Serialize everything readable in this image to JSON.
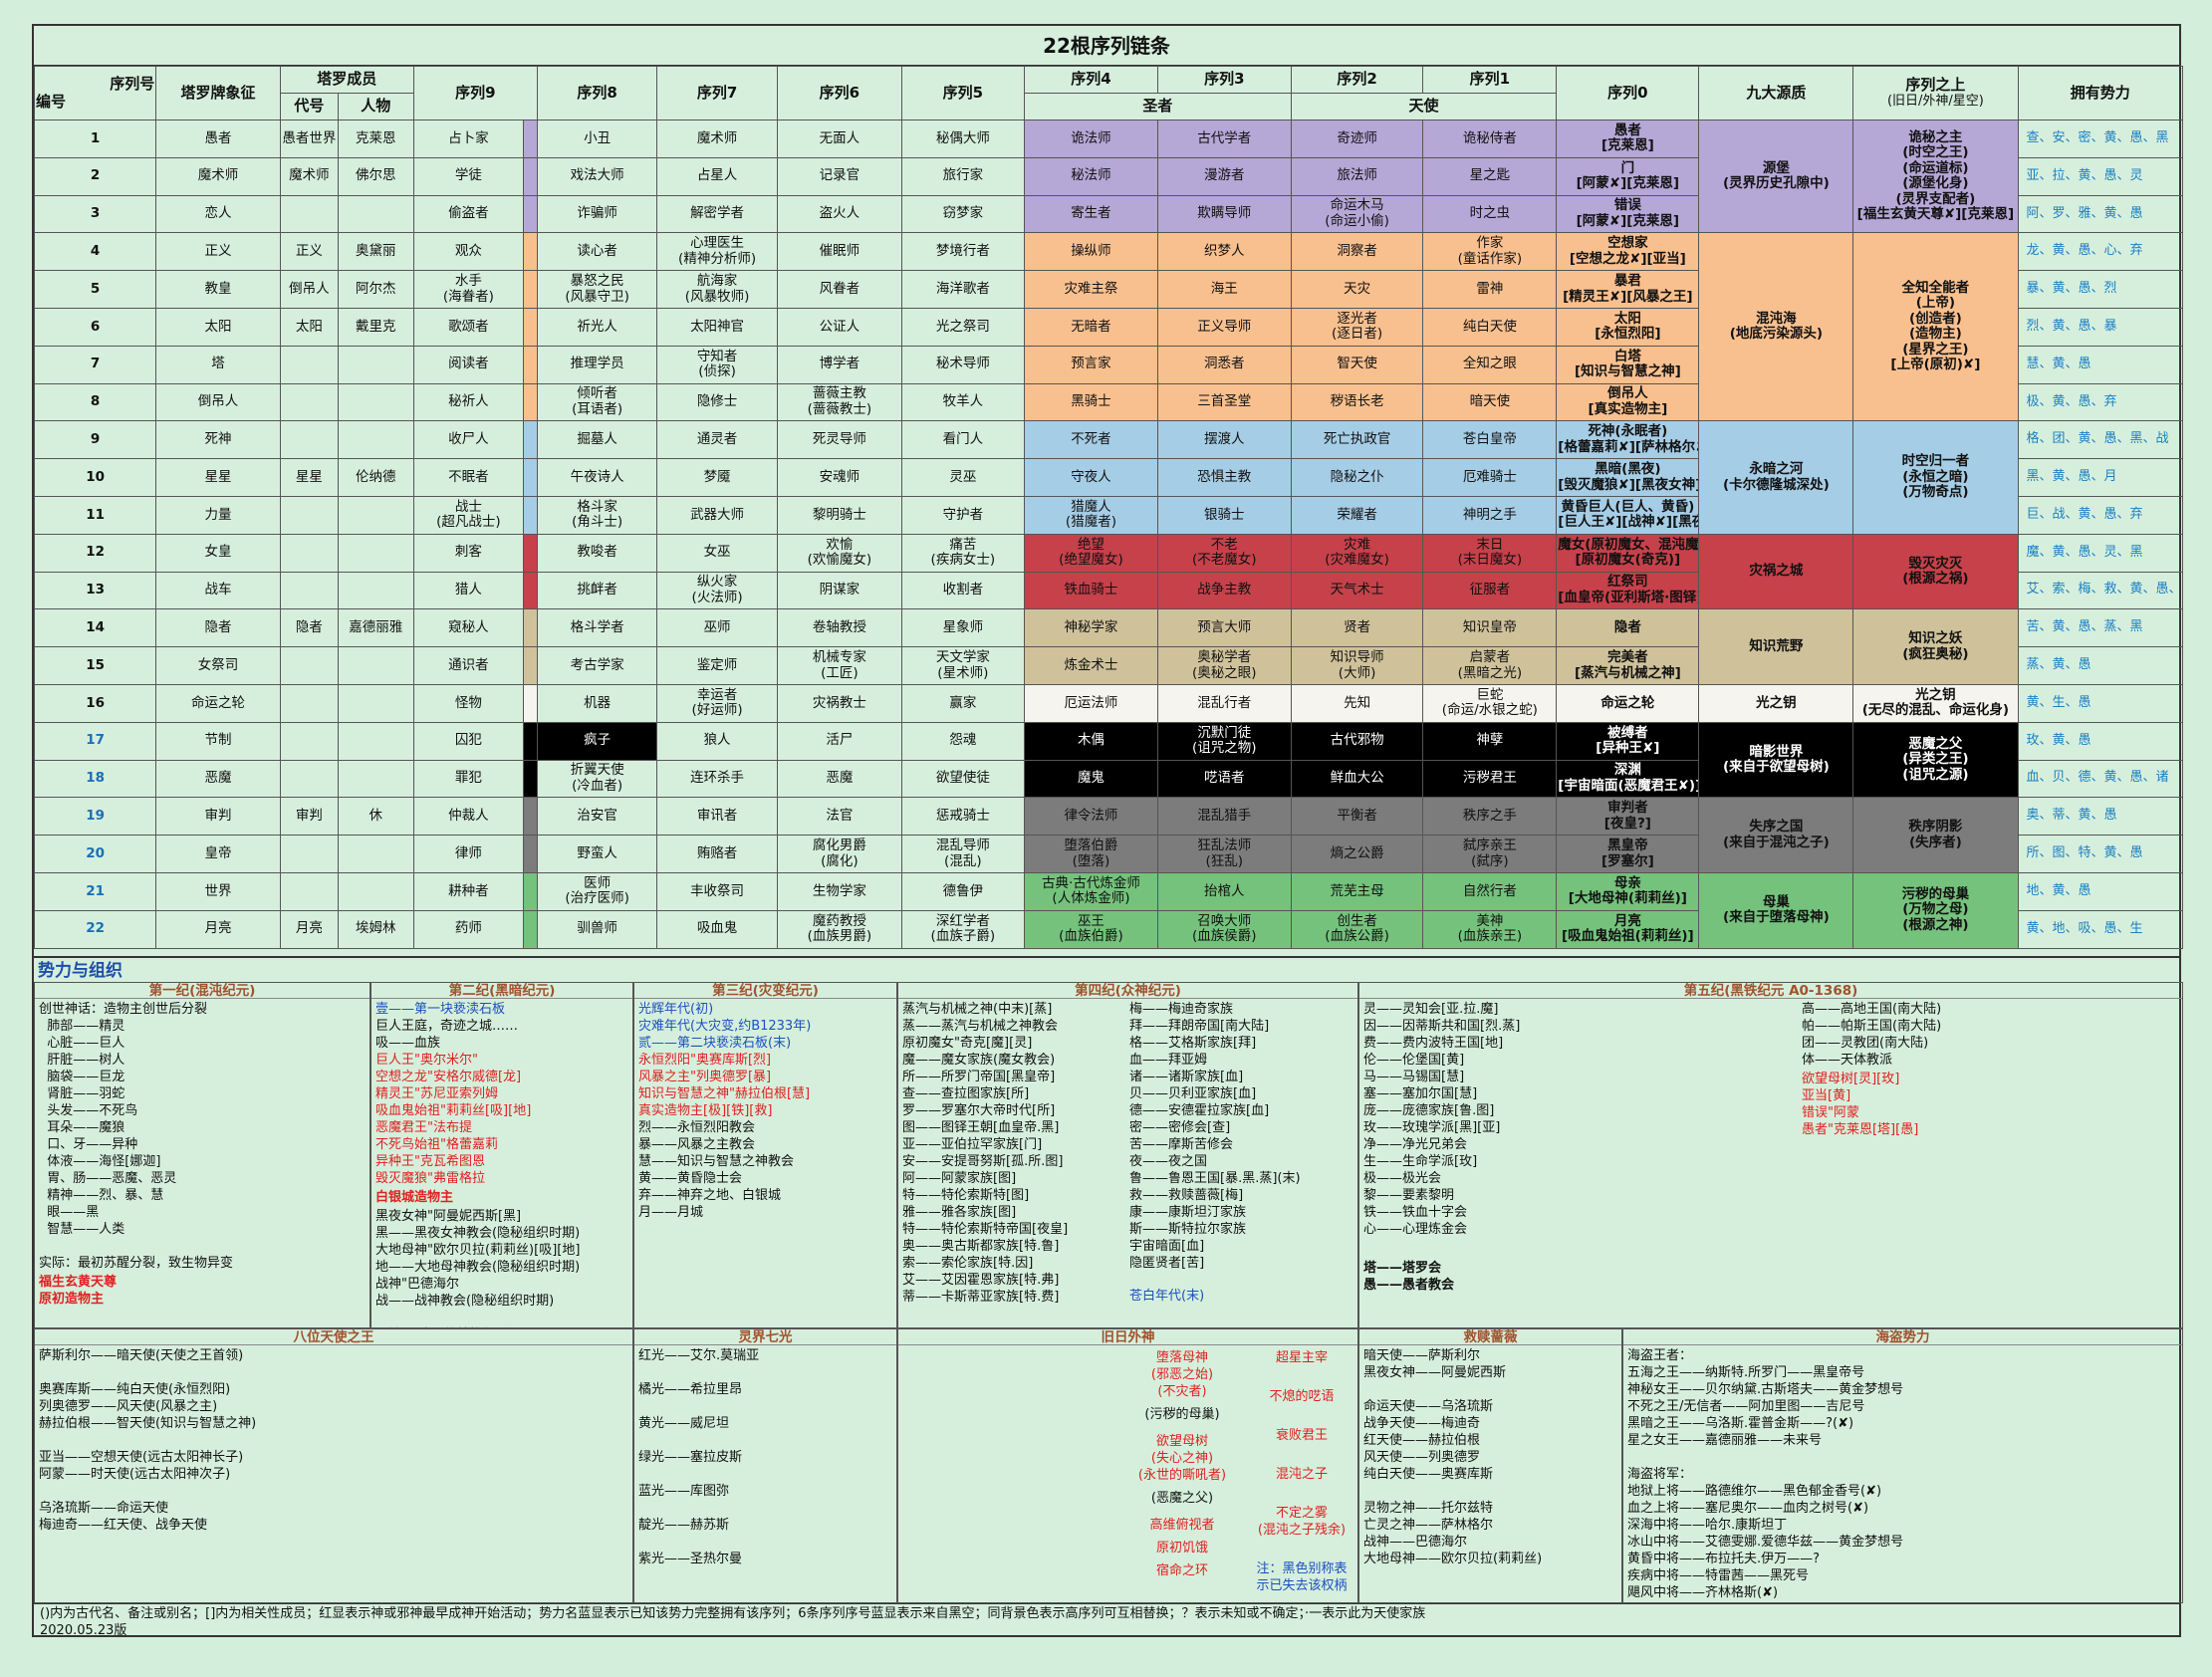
{
  "title": "22根序列链条",
  "header": {
    "seq_no": "序列号",
    "num": "编号",
    "tarot": "塔罗牌象征",
    "members": "塔罗成员",
    "code": "代号",
    "person": "人物",
    "seq9": "序列9",
    "seq8": "序列8",
    "seq7": "序列7",
    "seq6": "序列6",
    "seq5": "序列5",
    "seq4": "序列4",
    "seq3": "序列3",
    "seq2": "序列2",
    "seq1": "序列1",
    "saint": "圣者",
    "angel": "天使",
    "seq0": "序列0",
    "nine": "九大源质",
    "above": "序列之上",
    "above_sub": "(旧日/外神/星空)",
    "faction": "拥有势力"
  },
  "rows": [
    [
      "1",
      "愚者",
      "愚者世界",
      "克莱恩",
      "占卜家",
      "小丑",
      "魔术师",
      "无面人",
      "秘偶大师",
      "诡法师",
      "古代学者",
      "奇迹师",
      "诡秘侍者",
      "愚者\n[克莱恩]",
      "源堡\n(灵界历史孔隙中)",
      "诡秘之主\n(时空之王)\n(命运道标)\n(源堡化身)\n(灵界支配者)\n[福生玄黄天尊✘][克莱恩]",
      "查、安、密、黄、愚、黑"
    ],
    [
      "2",
      "魔术师",
      "魔术师",
      "佛尔思",
      "学徒",
      "戏法大师",
      "占星人",
      "记录官",
      "旅行家",
      "秘法师",
      "漫游者",
      "旅法师",
      "星之匙",
      "门\n[阿蒙✘][克莱恩]",
      "",
      "",
      "亚、拉、黄、愚、灵"
    ],
    [
      "3",
      "恋人",
      "",
      "",
      "偷盗者",
      "诈骗师",
      "解密学者",
      "盗火人",
      "窃梦家",
      "寄生者",
      "欺瞒导师",
      "命运木马\n(命运小偷)",
      "时之虫",
      "错误\n[阿蒙✘][克莱恩]",
      "",
      "",
      "阿、罗、雅、黄、愚"
    ],
    [
      "4",
      "正义",
      "正义",
      "奥黛丽",
      "观众",
      "读心者",
      "心理医生\n(精神分析师)",
      "催眠师",
      "梦境行者",
      "操纵师",
      "织梦人",
      "洞察者",
      "作家\n(童话作家)",
      "空想家\n[空想之龙✘][亚当]",
      "混沌海\n(地底污染源头)",
      "全知全能者\n(上帝)\n(创造者)\n(造物主)\n(星界之王)\n[上帝(原初)✘]",
      "龙、黄、愚、心、弃"
    ],
    [
      "5",
      "教皇",
      "倒吊人",
      "阿尔杰",
      "水手\n(海眷者)",
      "暴怒之民\n(风暴守卫)",
      "航海家\n(风暴牧师)",
      "风眷者",
      "海洋歌者",
      "灾难主祭",
      "海王",
      "天灾",
      "雷神",
      "暴君\n[精灵王✘][风暴之王]",
      "",
      "",
      "暴、黄、愚、烈"
    ],
    [
      "6",
      "太阳",
      "太阳",
      "戴里克",
      "歌颂者",
      "祈光人",
      "太阳神官",
      "公证人",
      "光之祭司",
      "无暗者",
      "正义导师",
      "逐光者\n(逐日者)",
      "纯白天使",
      "太阳\n[永恒烈阳]",
      "",
      "",
      "烈、黄、愚、暴"
    ],
    [
      "7",
      "塔",
      "",
      "",
      "阅读者",
      "推理学员",
      "守知者\n(侦探)",
      "博学者",
      "秘术导师",
      "预言家",
      "洞悉者",
      "智天使",
      "全知之眼",
      "白塔\n[知识与智慧之神]",
      "",
      "",
      "慧、黄、愚"
    ],
    [
      "8",
      "倒吊人",
      "",
      "",
      "秘祈人",
      "倾听者\n(耳语者)",
      "隐修士",
      "蔷薇主教\n(蔷薇教士)",
      "牧羊人",
      "黑骑士",
      "三首圣堂",
      "秽语长老",
      "暗天使",
      "倒吊人\n[真实造物主]",
      "",
      "",
      "极、黄、愚、弃"
    ],
    [
      "9",
      "死神",
      "",
      "",
      "收尸人",
      "掘墓人",
      "通灵者",
      "死灵导师",
      "看门人",
      "不死者",
      "摆渡人",
      "死亡执政官",
      "苍白皇帝",
      "死神(永眠者)\n[格蕾嘉莉✘][萨林格尔✘][黑夜女神]",
      "永暗之河\n(卡尔德隆城深处)",
      "时空归一者\n(永恒之暗)\n(万物奇点)",
      "格、团、黄、愚、黑、战"
    ],
    [
      "10",
      "星星",
      "星星",
      "伦纳德",
      "不眠者",
      "午夜诗人",
      "梦魇",
      "安魂师",
      "灵巫",
      "守夜人",
      "恐惧主教",
      "隐秘之仆",
      "厄难骑士",
      "黑暗(黑夜)\n[毁灭魔狼✘][黑夜女神]",
      "",
      "",
      "黑、黄、愚、月"
    ],
    [
      "11",
      "力量",
      "",
      "",
      "战士\n(超凡战士)",
      "格斗家\n(角斗士)",
      "武器大师",
      "黎明骑士",
      "守护者",
      "猎魔人\n(猎魔者)",
      "银骑士",
      "荣耀者",
      "神明之手",
      "黄昏巨人(巨人、黄昏)\n[巨人王✘][战神✘][黑夜女神]",
      "",
      "",
      "巨、战、黄、愚、弃"
    ],
    [
      "12",
      "女皇",
      "",
      "",
      "刺客",
      "教唆者",
      "女巫",
      "欢愉\n(欢愉魔女)",
      "痛苦\n(疾病女士)",
      "绝望\n(绝望魔女)",
      "不老\n(不老魔女)",
      "灾难\n(灾难魔女)",
      "末日\n(末日魔女)",
      "魔女(原初魔女、混沌魔女)\n[原初魔女(奇克)]",
      "灾祸之城",
      "毁灭灾灭\n(根源之祸)",
      "魔、黄、愚、灵、黑"
    ],
    [
      "13",
      "战车",
      "",
      "",
      "猎人",
      "挑衅者",
      "纵火家\n(火法师)",
      "阴谋家",
      "收割者",
      "铁血骑士",
      "战争主教",
      "天气术士",
      "征服者",
      "红祭司\n[血皇帝(亚利斯塔·图铎)✘]",
      "",
      "",
      "艾、索、梅、救、黄、愚、铁"
    ],
    [
      "14",
      "隐者",
      "隐者",
      "嘉德丽雅",
      "窥秘人",
      "格斗学者",
      "巫师",
      "卷轴教授",
      "星象师",
      "神秘学家",
      "预言大师",
      "贤者",
      "知识皇帝",
      "隐者",
      "知识荒野",
      "知识之妖\n(疯狂奥秘)",
      "苦、黄、愚、蒸、黑"
    ],
    [
      "15",
      "女祭司",
      "",
      "",
      "通识者",
      "考古学家",
      "鉴定师",
      "机械专家\n(工匠)",
      "天文学家\n(星术师)",
      "炼金术士",
      "奥秘学者\n(奥秘之眼)",
      "知识导师\n(大师)",
      "启蒙者\n(黑暗之光)",
      "完美者\n[蒸汽与机械之神]",
      "",
      "",
      "蒸、黄、愚"
    ],
    [
      "16",
      "命运之轮",
      "",
      "",
      "怪物",
      "机器",
      "幸运者\n(好运师)",
      "灾祸教士",
      "赢家",
      "厄运法师",
      "混乱行者",
      "先知",
      "巨蛇\n(命运/水银之蛇)",
      "命运之轮",
      "光之钥",
      "光之钥\n(无尽的混乱、命运化身)",
      "黄、生、愚"
    ],
    [
      "17",
      "节制",
      "",
      "",
      "囚犯",
      "疯子",
      "狼人",
      "活尸",
      "怨魂",
      "木偶",
      "沉默门徒\n(诅咒之物)",
      "古代邪物",
      "神孽",
      "被缚者\n[异种王✘]",
      "暗影世界\n(来自于欲望母树)",
      "恶魔之父\n(异类之王)\n(诅咒之源)",
      "玫、黄、愚"
    ],
    [
      "18",
      "恶魔",
      "",
      "",
      "罪犯",
      "折翼天使\n(冷血者)",
      "连环杀手",
      "恶魔",
      "欲望使徒",
      "魔鬼",
      "呓语者",
      "鲜血大公",
      "污秽君王",
      "深渊\n[宇宙暗面(恶魔君王✘)]",
      "",
      "",
      "血、贝、德、黄、愚、诸"
    ],
    [
      "19",
      "审判",
      "审判",
      "休",
      "仲裁人",
      "治安官",
      "审讯者",
      "法官",
      "惩戒骑士",
      "律令法师",
      "混乱猎手",
      "平衡者",
      "秩序之手",
      "审判者\n[夜皇?]",
      "失序之国\n(来自于混沌之子)",
      "秩序阴影\n(失序者)",
      "奥、蒂、黄、愚"
    ],
    [
      "20",
      "皇帝",
      "",
      "",
      "律师",
      "野蛮人",
      "贿赂者",
      "腐化男爵\n(腐化)",
      "混乱导师\n(混乱)",
      "堕落伯爵\n(堕落)",
      "狂乱法师\n(狂乱)",
      "熵之公爵",
      "弑序亲王\n(弑序)",
      "黑皇帝\n[罗塞尔]",
      "",
      "",
      "所、图、特、黄、愚"
    ],
    [
      "21",
      "世界",
      "",
      "",
      "耕种者",
      "医师\n(治疗医师)",
      "丰收祭司",
      "生物学家",
      "德鲁伊",
      "古典·古代炼金师\n(人体炼金师)",
      "抬棺人",
      "荒芜主母",
      "自然行者",
      "母亲\n[大地母神(莉莉丝)]",
      "母巢\n(来自于堕落母神)",
      "污秽的母巢\n(万物之母)\n(根源之神)",
      "地、黄、愚"
    ],
    [
      "22",
      "月亮",
      "月亮",
      "埃姆林",
      "药师",
      "驯兽师",
      "吸血鬼",
      "魔药教授\n(血族男爵)",
      "深红学者\n(血族子爵)",
      "巫王\n(血族伯爵)",
      "召唤大师\n(血族侯爵)",
      "创生者\n(血族公爵)",
      "美神\n(血族亲王)",
      "月亮\n[吸血鬼始祖(莉莉丝)]",
      "",
      "",
      "黄、地、吸、愚、生"
    ]
  ],
  "org_title": "势力与组织",
  "secs": {
    "e1": {
      "h": "第一纪(混沌纪元)",
      "t": "创世神话：造物主创世后分裂\n  肺部——精灵\n  心脏——巨人\n  肝脏——树人\n  脑袋——巨龙\n  肾脏——羽蛇\n  头发——不死鸟\n  耳朵——魔狼\n  口、牙——异种\n  体液——海怪[娜迦]\n  胃、肠——恶魔、恶灵\n  精神——烈、暴、慧\n  眼——黑\n  智慧——人类\n\n实际：最初苏醒分裂，致生物异变",
      "r": "福生玄黄天尊\n原初造物主"
    },
    "e2": {
      "h": "第二纪(黑暗纪元)",
      "b": "壹——第一块亵渎石板",
      "t": "巨人王庭，奇迹之城……\n吸——血族\n",
      "r": "巨人王\"奥尔米尔\"\n空想之龙\"安格尔威德[龙]\n精灵王\"苏尼亚索列姆\n吸血鬼始祖\"莉莉丝[吸][地]\n恶魔君王\"法布提\n不死鸟始祖\"格蕾嘉莉\n异种王\"克瓦希图恩\n毁灭魔狼\"弗雷格拉",
      "r2": "白银城造物主",
      "t2": "黑夜女神\"阿曼妮西斯[黑]\n黑——黑夜女神教会(隐秘组织时期)\n大地母神\"欧尔贝拉(莉莉丝)[吸][地]\n地——大地母神教会(隐秘组织时期)\n战神\"巴德海尔\n战——战神教会(隐秘组织时期)\n\n死神(冥皇)\"萨林格尔[拜][团]"
    },
    "e3": {
      "h": "第三纪(灾变纪元)",
      "t": "光辉年代(初)\n灾难年代(大灾变,约B1233年)\n贰——第二块亵渎石板(末)\n",
      "r": "永恒烈阳\"奥赛库斯[烈]\n风暴之主\"列奥德罗[暴]\n知识与智慧之神\"赫拉伯根[慧]\n真实造物主[极][铁][救]",
      "t2": "烈——永恒烈阳教会\n暴——风暴之主教会\n慧——知识与智慧之神教会\n黄——黄昏隐士会\n弃——神弃之地、白银城\n月——月城"
    },
    "e4": {
      "h": "第四纪(众神纪元)",
      "a": "蒸汽与机械之神(中末)[蒸]\n蒸——蒸汽与机械之神教会\n原初魔女\"奇克[魔][灵]\n魔——魔女家族(魔女教会)\n所——所罗门帝国[黑皇帝]\n查——查拉图家族[所]\n罗——罗塞尔大帝时代[所]\n图——图铎王朝[血皇帝.黑]\n亚——亚伯拉罕家族[门]\n安——安提哥努斯[孤.所.图]\n阿——阿蒙家族[图]\n特——特伦索斯特[图]\n雅——雅各家族[图]\n特——特伦索斯特帝国[夜皇]\n奥——奥古斯都家族[特.鲁]\n索——索伦家族[特.因]\n艾——艾因霍恩家族[特.弗]\n蒂——卡斯蒂亚家族[特.费]",
      "b": "梅——梅迪奇家族\n拜——拜朗帝国[南大陆]\n格——艾格斯家族[拜]\n血——拜亚姆\n诸——诸斯家族[血]\n贝——贝利亚家族[血]\n德——安德霍拉家族[血]\n密——密修会[查]\n苦——摩斯苦修会\n夜——夜之国\n鲁——鲁恩王国[暴.黑.蒸](末)\n救——救赎蔷薇[梅]\n康——康斯坦汀家族\n斯——斯特拉尔家族\n宇宙暗面[血]\n隐匿贤者[苦]",
      "c": "苍白年代(末)"
    },
    "e5": {
      "h": "第五纪(黑铁纪元 A0-1368)",
      "a": "灵——灵知会[亚.拉.魔]\n因——因蒂斯共和国[烈.蒸]\n费——费内波特王国[地]\n伦——伦堡国[黄]\n马——马锡国[慧]\n塞——塞加尔国[慧]\n庞——庞德家族[鲁.图]\n玫——玫瑰学派[黑][亚]\n净——净光兄弟会\n生——生命学派[玫]\n极——极光会\n黎——要素黎明\n铁——铁血十字会\n心——心理炼金会\n",
      "b2": "塔——塔罗会\n愚——愚者教会",
      "b": "高——高地王国(南大陆)\n帕——帕斯王国(南大陆)\n团——灵教团(南大陆)\n体——天体教派\n",
      "r": "欲望母树[灵][玫]\n亚当[黄]\n错误\"阿蒙\n愚者\"克莱恩[塔][愚]"
    },
    "angels": {
      "h": "八位天使之王",
      "t": "萨斯利尔——暗天使(天使之王首领)\n\n奥赛库斯——纯白天使(永恒烈阳)\n列奥德罗——风天使(风暴之主)\n赫拉伯根——智天使(知识与智慧之神)\n\n亚当——空想天使(远古太阳神长子)\n阿蒙——时天使(远古太阳神次子)\n\n乌洛琉斯——命运天使\n梅迪奇——红天使、战争天使"
    },
    "seven": {
      "h": "灵界七光",
      "t": "红光——艾尔.莫瑞亚\n\n橘光——希拉里昂\n\n黄光——威尼坦\n\n绿光——塞拉皮斯\n\n蓝光——库图弥\n\n靛光——赫苏斯\n\n紫光——圣热尔曼"
    },
    "outer": {
      "h": "旧日外神",
      "l": [
        "堕落母神\n(邪恶之始)\n(不灾者)",
        "欲望母树\n(失心之神)\n(永世的嘶吼者)",
        "高维俯视者",
        "原初饥饿",
        "宿命之环"
      ],
      "ln": [
        "(污秽的母巢)",
        "(恶魔之父)"
      ],
      "r": [
        "超星主宰",
        "不熄的呓语",
        "衰败君王",
        "混沌之子",
        "不定之雾\n(混沌之子残余)"
      ],
      "note": "注：黑色别称表\n示已失去该权柄"
    },
    "rose": {
      "h": "救赎蔷薇",
      "t": "暗天使——萨斯利尔\n黑夜女神——阿曼妮西斯\n\n命运天使——乌洛琉斯\n战争天使——梅迪奇\n红天使——赫拉伯根\n风天使——列奥德罗\n纯白天使——奥赛库斯\n\n灵物之神——托尔兹特\n亡灵之神——萨林格尔\n战神——巴德海尔\n大地母神——欧尔贝拉(莉莉丝)"
    },
    "pirate": {
      "h": "海盗势力",
      "t": "海盗王者：\n五海之王——纳斯特.所罗门——黑皇帝号\n神秘女王——贝尔纳黛.古斯塔夫——黄金梦想号\n不死之王/无信者——阿加里图——吉尼号\n黑暗之王——乌洛斯.霍普金斯——?(✘)\n星之女王——嘉德丽雅——未来号\n\n海盗将军：\n地狱上将——路德维尔——黑色郁金香号(✘)\n血之上将——塞尼奥尔——血肉之树号(✘)\n深海中将——哈尔.康斯坦丁\n冰山中将——艾德雯娜.爱德华兹——黄金梦想号\n黄昏中将——布拉托夫.伊万——?\n疾病中将——特雷茜——黑死号\n飓风中将——齐林格斯(✘)"
    }
  },
  "footer": "()内为古代名、备注或别名；[]内为相关性成员；红显表示神或邪神最早成神开始活动；势力名蓝显表示已知该势力完整拥有该序列；6条序列序号蓝显表示来自黑空；同背景色表示高序列可互相替换；？表示未知或不确定；·一表示此为天使家族\n2020.05.23版"
}
